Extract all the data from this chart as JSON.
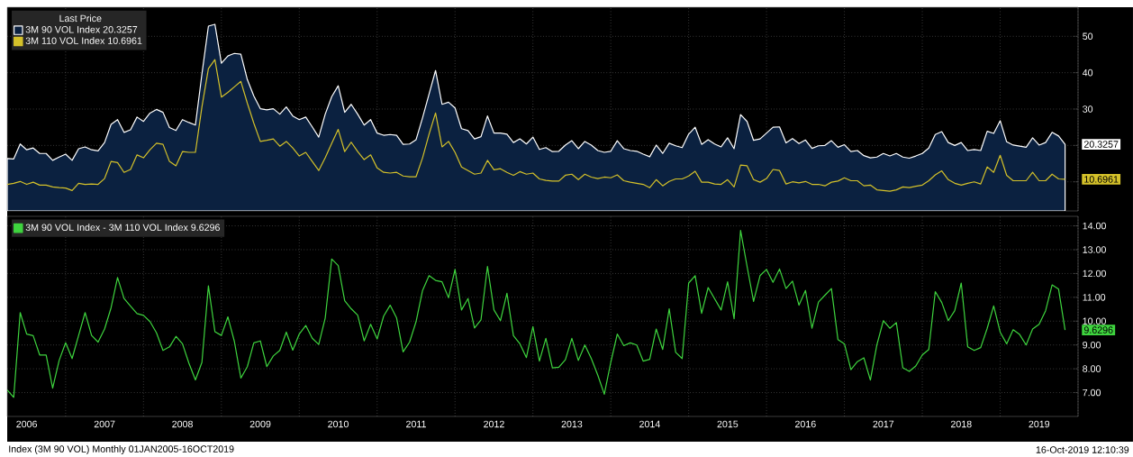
{
  "chart_data": [
    {
      "type": "line",
      "legend_title": "Last Price",
      "legend": "top left",
      "grid": true,
      "tick_labels": "y",
      "x": [
        "2006-03",
        "2006-04",
        "2006-05",
        "2006-06",
        "2006-07",
        "2006-08",
        "2006-09",
        "2006-10",
        "2006-11",
        "2006-12",
        "2007-01",
        "2007-02",
        "2007-03",
        "2007-04",
        "2007-05",
        "2007-06",
        "2007-07",
        "2007-08",
        "2007-09",
        "2007-10",
        "2007-11",
        "2007-12",
        "2008-01",
        "2008-02",
        "2008-03",
        "2008-04",
        "2008-05",
        "2008-06",
        "2008-07",
        "2008-08",
        "2008-09",
        "2008-10",
        "2008-11",
        "2008-12",
        "2009-01",
        "2009-02",
        "2009-03",
        "2009-04",
        "2009-05",
        "2009-06",
        "2009-07",
        "2009-08",
        "2009-09",
        "2009-10",
        "2009-11",
        "2009-12",
        "2010-01",
        "2010-02",
        "2010-03",
        "2010-04",
        "2010-05",
        "2010-06",
        "2010-07",
        "2010-08",
        "2010-09",
        "2010-10",
        "2010-11",
        "2010-12",
        "2011-01",
        "2011-02",
        "2011-03",
        "2011-04",
        "2011-05",
        "2011-06",
        "2011-07",
        "2011-08",
        "2011-09",
        "2011-10",
        "2011-11",
        "2011-12",
        "2012-01",
        "2012-02",
        "2012-03",
        "2012-04",
        "2012-05",
        "2012-06",
        "2012-07",
        "2012-08",
        "2012-09",
        "2012-10",
        "2012-11",
        "2012-12",
        "2013-01",
        "2013-02",
        "2013-03",
        "2013-04",
        "2013-05",
        "2013-06",
        "2013-07",
        "2013-08",
        "2013-09",
        "2013-10",
        "2013-11",
        "2013-12",
        "2014-01",
        "2014-02",
        "2014-03",
        "2014-04",
        "2014-05",
        "2014-06",
        "2014-07",
        "2014-08",
        "2014-09",
        "2014-10",
        "2014-11",
        "2014-12",
        "2015-01",
        "2015-02",
        "2015-03",
        "2015-04",
        "2015-05",
        "2015-06",
        "2015-07",
        "2015-08",
        "2015-09",
        "2015-10",
        "2015-11",
        "2015-12",
        "2016-01",
        "2016-02",
        "2016-03",
        "2016-04",
        "2016-05",
        "2016-06",
        "2016-07",
        "2016-08",
        "2016-09",
        "2016-10",
        "2016-11",
        "2016-12",
        "2017-01",
        "2017-02",
        "2017-03",
        "2017-04",
        "2017-05",
        "2017-06",
        "2017-07",
        "2017-08",
        "2017-09",
        "2017-10",
        "2017-11",
        "2017-12",
        "2018-01",
        "2018-02",
        "2018-03",
        "2018-04",
        "2018-05",
        "2018-06",
        "2018-07",
        "2018-08",
        "2018-09",
        "2018-10",
        "2018-11",
        "2018-12",
        "2019-01",
        "2019-02",
        "2019-03",
        "2019-04",
        "2019-05",
        "2019-06",
        "2019-07",
        "2019-08",
        "2019-09",
        "2019-10"
      ],
      "series": [
        {
          "name": "3M 90 VOL Index  20.3257",
          "type": "area",
          "color": "#0b2140",
          "values": [
            16.4,
            16.3,
            20.4,
            18.8,
            19.3,
            17.8,
            17.8,
            15.9,
            16.8,
            17.6,
            15.9,
            19.1,
            19.6,
            18.8,
            18.5,
            20.8,
            25.8,
            27.1,
            23.6,
            24.3,
            27.8,
            26.6,
            28.9,
            29.9,
            29.1,
            24.9,
            24.1,
            27.1,
            26.3,
            25.6,
            39.6,
            52.8,
            53.3,
            42.6,
            44.6,
            45.3,
            45.1,
            38.1,
            33.6,
            30.1,
            29.8,
            30.1,
            28.6,
            30.6,
            28.1,
            27.1,
            27.8,
            25.1,
            22.3,
            28.6,
            33.4,
            36.4,
            29.1,
            31.3,
            28.6,
            25.6,
            27.1,
            23.4,
            22.8,
            23.0,
            22.8,
            20.3,
            20.4,
            21.6,
            27.6,
            34.1,
            40.6,
            31.3,
            31.9,
            30.3,
            24.6,
            24.1,
            21.8,
            22.4,
            28.1,
            23.4,
            23.4,
            23.1,
            20.8,
            21.8,
            20.4,
            22.3,
            18.9,
            19.4,
            18.3,
            18.4,
            20.1,
            21.3,
            19.1,
            21.1,
            20.1,
            18.6,
            18.1,
            18.4,
            21.3,
            19.1,
            18.6,
            18.4,
            17.6,
            16.9,
            20.1,
            17.8,
            20.6,
            19.9,
            19.4,
            23.1,
            25.0,
            20.3,
            21.6,
            20.4,
            19.6,
            22.1,
            19.1,
            28.5,
            26.6,
            21.4,
            21.8,
            23.4,
            25.0,
            25.1,
            20.7,
            21.9,
            20.5,
            21.5,
            19.2,
            19.9,
            20.0,
            21.3,
            19.5,
            20.2,
            18.3,
            18.6,
            17.2,
            16.6,
            16.8,
            17.8,
            17.1,
            17.8,
            16.8,
            16.5,
            17.1,
            17.8,
            19.3,
            23.0,
            23.8,
            20.8,
            20.0,
            20.8,
            18.6,
            18.9,
            18.6,
            23.9,
            23.3,
            26.8,
            21.0,
            20.1,
            19.8,
            19.5,
            22.1,
            20.1,
            20.8,
            23.6,
            22.6,
            20.3257
          ]
        },
        {
          "name": "3M 110 VOL Index 10.6961",
          "type": "line",
          "color": "#d4c12a",
          "values": [
            9.3,
            9.6,
            10.1,
            9.3,
            9.9,
            9.1,
            9.1,
            8.6,
            8.4,
            8.3,
            7.6,
            9.6,
            9.3,
            9.4,
            9.3,
            10.9,
            15.6,
            15.3,
            12.6,
            13.4,
            17.4,
            16.6,
            18.8,
            20.6,
            20.3,
            15.6,
            14.4,
            18.3,
            18.1,
            18.1,
            30.6,
            41.1,
            43.6,
            33.3,
            34.6,
            36.1,
            37.6,
            31.6,
            26.1,
            21.1,
            21.4,
            21.8,
            19.8,
            21.1,
            19.3,
            17.1,
            18.1,
            15.6,
            13.1,
            16.6,
            20.6,
            24.4,
            18.3,
            20.9,
            18.3,
            16.1,
            17.4,
            13.8,
            12.6,
            12.4,
            12.6,
            11.6,
            11.4,
            11.4,
            16.6,
            23.1,
            28.9,
            19.6,
            21.1,
            18.1,
            14.1,
            13.1,
            12.1,
            12.4,
            15.9,
            13.3,
            13.6,
            12.6,
            11.8,
            12.8,
            12.1,
            12.4,
            10.8,
            10.4,
            10.2,
            10.2,
            11.8,
            12.1,
            10.6,
            12.1,
            11.3,
            10.9,
            11.3,
            11.1,
            11.9,
            10.3,
            9.9,
            9.6,
            9.3,
            8.4,
            10.6,
            8.9,
            10.1,
            10.8,
            10.8,
            11.6,
            12.9,
            9.9,
            9.9,
            9.4,
            9.3,
            10.6,
            8.6,
            14.6,
            14.4,
            10.6,
            9.9,
            10.9,
            13.4,
            13.1,
            9.4,
            10.0,
            9.7,
            10.1,
            9.3,
            9.3,
            8.9,
            9.9,
            10.2,
            11.1,
            10.3,
            10.3,
            8.9,
            9.1,
            7.8,
            7.6,
            7.4,
            7.8,
            8.6,
            8.4,
            8.8,
            9.1,
            10.3,
            11.9,
            13.0,
            10.6,
            9.6,
            9.1,
            9.6,
            10.0,
            9.4,
            14.1,
            12.6,
            17.3,
            11.8,
            10.3,
            10.3,
            10.3,
            12.6,
            10.3,
            10.3,
            12.1,
            10.8,
            10.6961
          ]
        }
      ],
      "xlim": [
        "2006-03",
        "2019-12"
      ],
      "xticks": [
        {
          "value": "2006-12",
          "label": null
        },
        {
          "value": "2007-12",
          "label": null
        },
        {
          "value": "2008-12",
          "label": null
        },
        {
          "value": "2009-12",
          "label": null
        },
        {
          "value": "2010-12",
          "label": null
        },
        {
          "value": "2011-12",
          "label": null
        },
        {
          "value": "2012-12",
          "label": null
        },
        {
          "value": "2013-12",
          "label": null
        },
        {
          "value": "2014-12",
          "label": null
        },
        {
          "value": "2015-12",
          "label": null
        },
        {
          "value": "2016-12",
          "label": null
        },
        {
          "value": "2017-12",
          "label": null
        },
        {
          "value": "2018-12",
          "label": null
        },
        {
          "value": "2019-12",
          "label": null
        }
      ],
      "ylim": [
        2,
        58
      ],
      "yticks": [
        {
          "value": 10,
          "label": null
        },
        {
          "value": 20,
          "label": null
        },
        30,
        40,
        50
      ],
      "annotations": [
        {
          "text": "20.3257",
          "x": "2019-10",
          "y": 20.3257
        },
        {
          "text": "10.6961",
          "x": "2019-10",
          "y": 10.6961
        }
      ]
    },
    {
      "type": "line",
      "legend": "top left",
      "grid": true,
      "x": [
        "2006-03",
        "2006-04",
        "2006-05",
        "2006-06",
        "2006-07",
        "2006-08",
        "2006-09",
        "2006-10",
        "2006-11",
        "2006-12",
        "2007-01",
        "2007-02",
        "2007-03",
        "2007-04",
        "2007-05",
        "2007-06",
        "2007-07",
        "2007-08",
        "2007-09",
        "2007-10",
        "2007-11",
        "2007-12",
        "2008-01",
        "2008-02",
        "2008-03",
        "2008-04",
        "2008-05",
        "2008-06",
        "2008-07",
        "2008-08",
        "2008-09",
        "2008-10",
        "2008-11",
        "2008-12",
        "2009-01",
        "2009-02",
        "2009-03",
        "2009-04",
        "2009-05",
        "2009-06",
        "2009-07",
        "2009-08",
        "2009-09",
        "2009-10",
        "2009-11",
        "2009-12",
        "2010-01",
        "2010-02",
        "2010-03",
        "2010-04",
        "2010-05",
        "2010-06",
        "2010-07",
        "2010-08",
        "2010-09",
        "2010-10",
        "2010-11",
        "2010-12",
        "2011-01",
        "2011-02",
        "2011-03",
        "2011-04",
        "2011-05",
        "2011-06",
        "2011-07",
        "2011-08",
        "2011-09",
        "2011-10",
        "2011-11",
        "2011-12",
        "2012-01",
        "2012-02",
        "2012-03",
        "2012-04",
        "2012-05",
        "2012-06",
        "2012-07",
        "2012-08",
        "2012-09",
        "2012-10",
        "2012-11",
        "2012-12",
        "2013-01",
        "2013-02",
        "2013-03",
        "2013-04",
        "2013-05",
        "2013-06",
        "2013-07",
        "2013-08",
        "2013-09",
        "2013-10",
        "2013-11",
        "2013-12",
        "2014-01",
        "2014-02",
        "2014-03",
        "2014-04",
        "2014-05",
        "2014-06",
        "2014-07",
        "2014-08",
        "2014-09",
        "2014-10",
        "2014-11",
        "2014-12",
        "2015-01",
        "2015-02",
        "2015-03",
        "2015-04",
        "2015-05",
        "2015-06",
        "2015-07",
        "2015-08",
        "2015-09",
        "2015-10",
        "2015-11",
        "2015-12",
        "2016-01",
        "2016-02",
        "2016-03",
        "2016-04",
        "2016-05",
        "2016-06",
        "2016-07",
        "2016-08",
        "2016-09",
        "2016-10",
        "2016-11",
        "2016-12",
        "2017-01",
        "2017-02",
        "2017-03",
        "2017-04",
        "2017-05",
        "2017-06",
        "2017-07",
        "2017-08",
        "2017-09",
        "2017-10",
        "2017-11",
        "2017-12",
        "2018-01",
        "2018-02",
        "2018-03",
        "2018-04",
        "2018-05",
        "2018-06",
        "2018-07",
        "2018-08",
        "2018-09",
        "2018-10",
        "2018-11",
        "2018-12",
        "2019-01",
        "2019-02",
        "2019-03",
        "2019-04",
        "2019-05",
        "2019-06",
        "2019-07",
        "2019-08",
        "2019-09",
        "2019-10"
      ],
      "series": [
        {
          "name": "3M 90 VOL Index - 3M 110 VOL Index 9.6296",
          "color": "#3ed43e",
          "values": [
            7.11,
            6.8,
            10.36,
            9.46,
            9.39,
            8.58,
            8.58,
            7.19,
            8.35,
            9.09,
            8.43,
            9.4,
            10.36,
            9.4,
            9.12,
            9.67,
            10.56,
            11.83,
            10.95,
            10.63,
            10.32,
            10.24,
            9.98,
            9.51,
            8.77,
            8.92,
            9.36,
            9.05,
            8.23,
            7.53,
            8.27,
            11.48,
            9.56,
            9.4,
            10.18,
            9.15,
            7.61,
            8.09,
            9.09,
            9.17,
            8.09,
            8.54,
            8.77,
            9.54,
            8.78,
            9.46,
            9.82,
            9.28,
            9.02,
            10.13,
            12.61,
            12.33,
            10.86,
            10.52,
            10.25,
            9.17,
            9.87,
            9.25,
            10.21,
            10.67,
            10.13,
            8.71,
            9.12,
            9.98,
            11.29,
            11.91,
            11.71,
            11.65,
            10.98,
            12.17,
            10.47,
            10.95,
            9.71,
            10.05,
            12.3,
            10.47,
            10.02,
            11.17,
            9.39,
            9.05,
            8.47,
            9.77,
            8.32,
            9.28,
            8.04,
            8.07,
            8.38,
            9.28,
            8.35,
            9.0,
            8.43,
            7.73,
            6.93,
            8.27,
            9.46,
            8.97,
            9.09,
            9.0,
            8.32,
            8.4,
            9.67,
            8.81,
            10.52,
            8.69,
            8.43,
            11.6,
            11.91,
            10.33,
            11.41,
            10.94,
            10.47,
            11.65,
            10.1,
            13.81,
            12.3,
            10.83,
            11.91,
            12.17,
            11.63,
            12.19,
            11.37,
            11.68,
            10.67,
            11.29,
            9.7,
            10.8,
            11.09,
            11.37,
            9.23,
            9.05,
            7.96,
            8.3,
            8.46,
            7.53,
            9.0,
            10.02,
            9.7,
            9.94,
            8.04,
            7.89,
            8.12,
            8.58,
            8.81,
            11.24,
            10.78,
            10.02,
            10.44,
            11.6,
            8.92,
            8.77,
            8.89,
            9.7,
            10.64,
            9.54,
            9.05,
            9.64,
            9.44,
            9.0,
            9.67,
            9.87,
            10.44,
            11.52,
            11.34,
            9.6296
          ]
        }
      ],
      "xlim": [
        "2006-03",
        "2019-12"
      ],
      "xticks": [
        {
          "value": "2006-06",
          "label": "2006"
        },
        {
          "value": "2007-06",
          "label": "2007"
        },
        {
          "value": "2008-06",
          "label": "2008"
        },
        {
          "value": "2009-06",
          "label": "2009"
        },
        {
          "value": "2010-06",
          "label": "2010"
        },
        {
          "value": "2011-06",
          "label": "2011"
        },
        {
          "value": "2012-06",
          "label": "2012"
        },
        {
          "value": "2013-06",
          "label": "2013"
        },
        {
          "value": "2014-06",
          "label": "2014"
        },
        {
          "value": "2015-06",
          "label": "2015"
        },
        {
          "value": "2016-06",
          "label": "2016"
        },
        {
          "value": "2017-06",
          "label": "2017"
        },
        {
          "value": "2018-06",
          "label": "2018"
        },
        {
          "value": "2019-06",
          "label": "2019"
        },
        {
          "value": "2006-12",
          "label": null
        },
        {
          "value": "2007-12",
          "label": null
        },
        {
          "value": "2008-12",
          "label": null
        },
        {
          "value": "2009-12",
          "label": null
        },
        {
          "value": "2010-12",
          "label": null
        },
        {
          "value": "2011-12",
          "label": null
        },
        {
          "value": "2012-12",
          "label": null
        },
        {
          "value": "2013-12",
          "label": null
        },
        {
          "value": "2014-12",
          "label": null
        },
        {
          "value": "2015-12",
          "label": null
        },
        {
          "value": "2016-12",
          "label": null
        },
        {
          "value": "2017-12",
          "label": null
        },
        {
          "value": "2018-12",
          "label": null
        },
        {
          "value": "2019-12",
          "label": null
        }
      ],
      "ylim": [
        6.0,
        14.4
      ],
      "yticks": [
        {
          "value": 7,
          "label": "7.00"
        },
        {
          "value": 8,
          "label": "8.00"
        },
        {
          "value": 9,
          "label": "9.00"
        },
        {
          "value": 10,
          "label": "10.00"
        },
        {
          "value": 11,
          "label": "11.00"
        },
        {
          "value": 12,
          "label": "12.00"
        },
        {
          "value": 13,
          "label": "13.00"
        },
        {
          "value": 14,
          "label": "14.00"
        }
      ],
      "annotations": [
        {
          "text": "9.6296",
          "x": "2019-10",
          "y": 9.6296
        },
        "Index (3M 90 VOL)  Monthly 01JAN2005-16OCT2019",
        "16-Oct-2019 12:10:39"
      ]
    }
  ]
}
